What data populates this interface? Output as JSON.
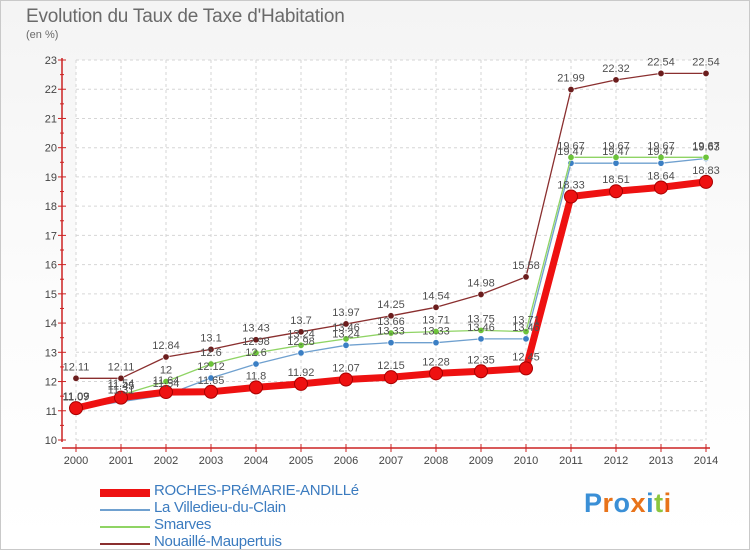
{
  "title": "Evolution du Taux de Taxe d'Habitation",
  "unit_label": "(en %)",
  "brand": {
    "text": "Proxiti",
    "colors": [
      "#3a8fd6",
      "#e8731a",
      "#3a8fd6",
      "#e8731a",
      "#3a8fd6",
      "#8cc63f",
      "#e8731a"
    ]
  },
  "chart_data": {
    "type": "line",
    "title": "Evolution du Taux de Taxe d'Habitation",
    "ylabel": "(en %)",
    "xlabel": "",
    "x": [
      2000,
      2001,
      2002,
      2003,
      2004,
      2005,
      2006,
      2007,
      2008,
      2009,
      2010,
      2011,
      2012,
      2013,
      2014
    ],
    "ylim": [
      10,
      23
    ],
    "yticks": [
      10,
      11,
      12,
      13,
      14,
      15,
      16,
      17,
      18,
      19,
      20,
      21,
      22,
      23
    ],
    "grid": true,
    "legend_position": "bottom-left",
    "series": [
      {
        "name": "ROCHES-PRéMARIE-ANDILLé",
        "color": "#ee1111",
        "marker_color": "#ee1111",
        "width": 7,
        "marker_radius": 6.5,
        "values": [
          11.09,
          11.45,
          11.64,
          11.65,
          11.8,
          11.92,
          12.07,
          12.15,
          12.28,
          12.35,
          12.45,
          18.33,
          18.51,
          18.64,
          18.83
        ],
        "labels": [
          "11.09",
          "11.45",
          "11.64",
          "11.65",
          "11.8",
          "11.92",
          "12.07",
          "12.15",
          "12.28",
          "12.35",
          "12.45",
          "18.33",
          "18.51",
          "18.64",
          "18.83"
        ]
      },
      {
        "name": "La Villedieu-du-Clain",
        "color": "#6fa0cf",
        "marker_color": "#3b7fc4",
        "width": 1.3,
        "marker_radius": 3.2,
        "values": [
          11.07,
          11.31,
          11.54,
          12.12,
          12.6,
          12.98,
          13.24,
          13.33,
          13.33,
          13.46,
          13.46,
          19.47,
          19.47,
          19.47,
          19.63
        ],
        "labels": [
          "11.07",
          "11.31",
          "11.54",
          "12.12",
          "12.6",
          "12.98",
          "13.24",
          "13.33",
          "13.33",
          "13.46",
          "13.46",
          "19.47",
          "19.47",
          "19.47",
          "19.63"
        ]
      },
      {
        "name": "Smarves",
        "color": "#8fd464",
        "marker_color": "#6cc33a",
        "width": 1.3,
        "marker_radius": 3.2,
        "values": [
          11.09,
          11.54,
          12.0,
          12.6,
          12.98,
          13.24,
          13.46,
          13.66,
          13.71,
          13.75,
          13.71,
          19.67,
          19.67,
          19.67,
          19.67
        ],
        "labels": [
          "11.09",
          "11.54",
          "12",
          "12.6",
          "12.98",
          "13.24",
          "13.46",
          "13.66",
          "13.71",
          "13.75",
          "13.71",
          "19.67",
          "19.67",
          "19.67",
          "19.67"
        ]
      },
      {
        "name": "Nouaillé-Maupertuis",
        "color": "#8a2f2f",
        "marker_color": "#6b1d1d",
        "width": 1.3,
        "marker_radius": 3.2,
        "values": [
          12.11,
          12.11,
          12.84,
          13.1,
          13.43,
          13.7,
          13.97,
          14.25,
          14.54,
          14.98,
          15.58,
          21.99,
          22.32,
          22.54,
          22.54
        ],
        "labels": [
          "12.11",
          "12.11",
          "12.84",
          "13.1",
          "13.43",
          "13.7",
          "13.97",
          "14.25",
          "14.54",
          "14.98",
          "15.58",
          "21.99",
          "22.32",
          "22.54",
          "22.54"
        ]
      }
    ]
  }
}
